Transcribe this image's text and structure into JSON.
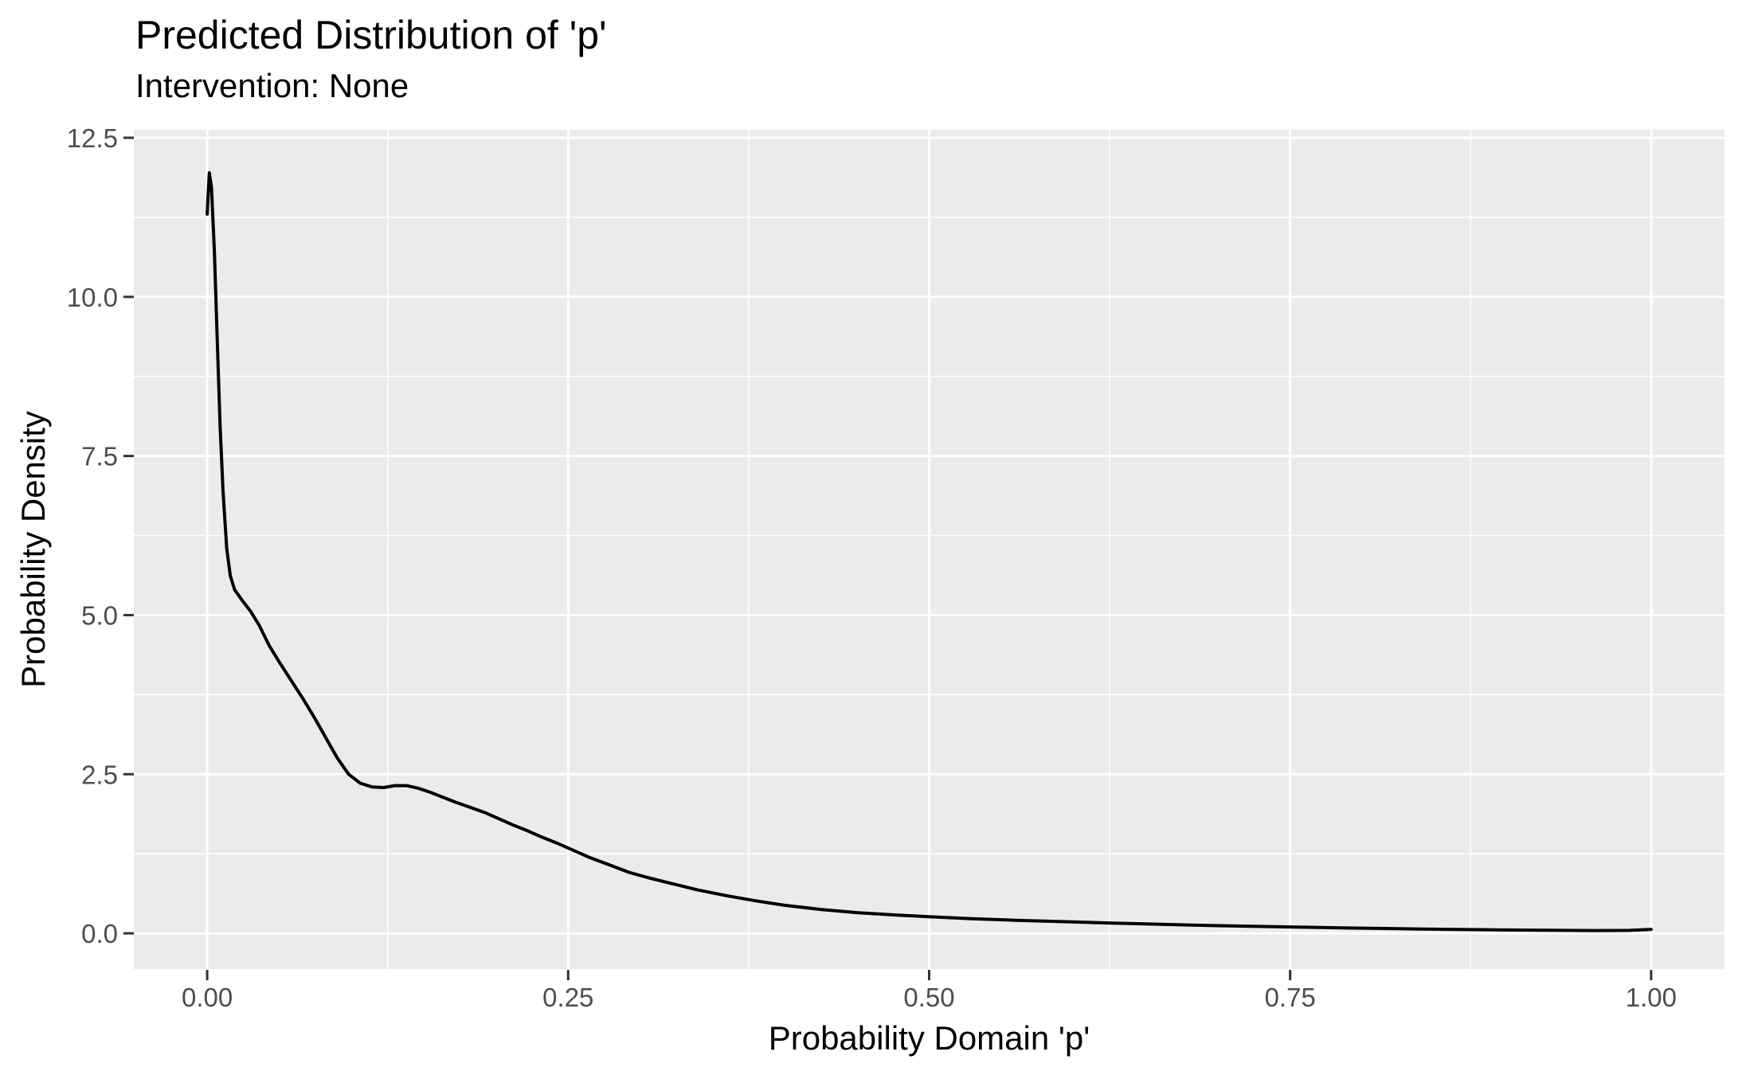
{
  "title": "Predicted Distribution of 'p'",
  "subtitle": "Intervention: None",
  "x_axis": {
    "label": "Probability Domain 'p'",
    "range": [
      -0.0508,
      1.0508
    ],
    "major_ticks": [
      0.0,
      0.25,
      0.5,
      0.75,
      1.0
    ],
    "major_tick_labels": [
      "0.00",
      "0.25",
      "0.50",
      "0.75",
      "1.00"
    ],
    "minor_ticks": [
      0.125,
      0.375,
      0.625,
      0.875
    ]
  },
  "y_axis": {
    "label": "Probability Density",
    "range": [
      -0.562,
      12.625
    ],
    "major_ticks": [
      0.0,
      2.5,
      5.0,
      7.5,
      10.0,
      12.5
    ],
    "major_tick_labels": [
      "0.0",
      "2.5",
      "5.0",
      "7.5",
      "10.0",
      "12.5"
    ],
    "minor_ticks": [
      1.25,
      3.75,
      6.25,
      8.75,
      11.25
    ]
  },
  "colors": {
    "background": "#FFFFFF",
    "panel": "#EBEBEB",
    "grid": "#FFFFFF",
    "curve": "#000000",
    "tick_text": "#4D4D4D",
    "tick_mark": "#333333",
    "title_text": "#000000"
  },
  "chart_data": {
    "type": "line",
    "subtype": "density-curve",
    "title": "Predicted Distribution of 'p'",
    "subtitle": "Intervention: None",
    "xlabel": "Probability Domain 'p'",
    "ylabel": "Probability Density",
    "xlim": [
      -0.0508,
      1.0508
    ],
    "ylim": [
      -0.562,
      12.625
    ],
    "grid": "on",
    "legend": "none",
    "points": [
      [
        0.0,
        11.3
      ],
      [
        0.0015,
        11.95
      ],
      [
        0.003,
        11.72
      ],
      [
        0.005,
        10.7
      ],
      [
        0.007,
        9.3
      ],
      [
        0.009,
        7.95
      ],
      [
        0.011,
        6.95
      ],
      [
        0.0135,
        6.05
      ],
      [
        0.016,
        5.62
      ],
      [
        0.019,
        5.4
      ],
      [
        0.024,
        5.24
      ],
      [
        0.03,
        5.06
      ],
      [
        0.036,
        4.84
      ],
      [
        0.043,
        4.52
      ],
      [
        0.05,
        4.26
      ],
      [
        0.058,
        3.98
      ],
      [
        0.066,
        3.7
      ],
      [
        0.074,
        3.4
      ],
      [
        0.082,
        3.08
      ],
      [
        0.09,
        2.76
      ],
      [
        0.098,
        2.5
      ],
      [
        0.106,
        2.36
      ],
      [
        0.114,
        2.3
      ],
      [
        0.122,
        2.29
      ],
      [
        0.13,
        2.32
      ],
      [
        0.138,
        2.32
      ],
      [
        0.146,
        2.28
      ],
      [
        0.154,
        2.22
      ],
      [
        0.163,
        2.14
      ],
      [
        0.172,
        2.06
      ],
      [
        0.182,
        1.98
      ],
      [
        0.192,
        1.9
      ],
      [
        0.202,
        1.8
      ],
      [
        0.212,
        1.7
      ],
      [
        0.222,
        1.61
      ],
      [
        0.232,
        1.51
      ],
      [
        0.242,
        1.42
      ],
      [
        0.252,
        1.32
      ],
      [
        0.264,
        1.2
      ],
      [
        0.278,
        1.08
      ],
      [
        0.292,
        0.96
      ],
      [
        0.306,
        0.87
      ],
      [
        0.322,
        0.78
      ],
      [
        0.34,
        0.68
      ],
      [
        0.36,
        0.59
      ],
      [
        0.38,
        0.51
      ],
      [
        0.4,
        0.44
      ],
      [
        0.425,
        0.375
      ],
      [
        0.45,
        0.325
      ],
      [
        0.475,
        0.29
      ],
      [
        0.5,
        0.26
      ],
      [
        0.53,
        0.23
      ],
      [
        0.56,
        0.205
      ],
      [
        0.59,
        0.185
      ],
      [
        0.62,
        0.165
      ],
      [
        0.65,
        0.148
      ],
      [
        0.685,
        0.128
      ],
      [
        0.72,
        0.112
      ],
      [
        0.755,
        0.098
      ],
      [
        0.79,
        0.084
      ],
      [
        0.825,
        0.072
      ],
      [
        0.86,
        0.062
      ],
      [
        0.895,
        0.054
      ],
      [
        0.93,
        0.048
      ],
      [
        0.96,
        0.044
      ],
      [
        0.985,
        0.046
      ],
      [
        1.0,
        0.062
      ]
    ]
  }
}
